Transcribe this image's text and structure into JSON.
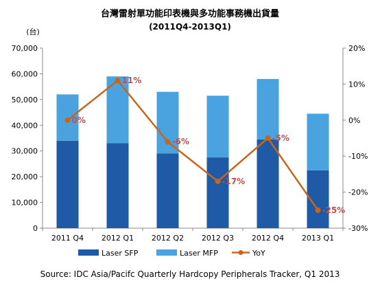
{
  "chart_data": {
    "type": "bar",
    "title": "台灣雷射單功能印表機與多功能事務機出貨量",
    "subtitle": "(2011Q4-2013Q1)",
    "y_unit": "(台)",
    "categories": [
      "2011 Q4",
      "2012 Q1",
      "2012 Q2",
      "2012 Q3",
      "2012 Q4",
      "2013 Q1"
    ],
    "series": [
      {
        "name": "Laser SFP",
        "type": "bar",
        "stack": "total",
        "axis": "left",
        "color": "#1f5aa6",
        "values": [
          34000,
          33000,
          29000,
          27500,
          34500,
          22500
        ]
      },
      {
        "name": "Laser MFP",
        "type": "bar",
        "stack": "total",
        "axis": "left",
        "color": "#4aa3df",
        "values": [
          18000,
          26000,
          24000,
          24000,
          23500,
          22000
        ]
      },
      {
        "name": "YoY",
        "type": "line",
        "axis": "right",
        "color": "#c8651b",
        "values": [
          0,
          11,
          -6,
          -17,
          -5,
          -25
        ],
        "labels": [
          "0%",
          "11%",
          "-6%",
          "-17%",
          "-5%",
          "-25%"
        ]
      }
    ],
    "y_left": {
      "min": 0,
      "max": 70000,
      "step": 10000,
      "tick_labels": [
        "0",
        "10,000",
        "20,000",
        "30,000",
        "40,000",
        "50,000",
        "60,000",
        "70,000"
      ]
    },
    "y_right": {
      "min": -30,
      "max": 20,
      "step": 10,
      "tick_labels": [
        "-30%",
        "-20%",
        "-10%",
        "0%",
        "10%",
        "20%"
      ]
    },
    "grid": false,
    "legend_position": "bottom",
    "source": "Source:  IDC Asia/Pacifc Quarterly Hardcopy  Peripherals Tracker, Q1 2013"
  }
}
